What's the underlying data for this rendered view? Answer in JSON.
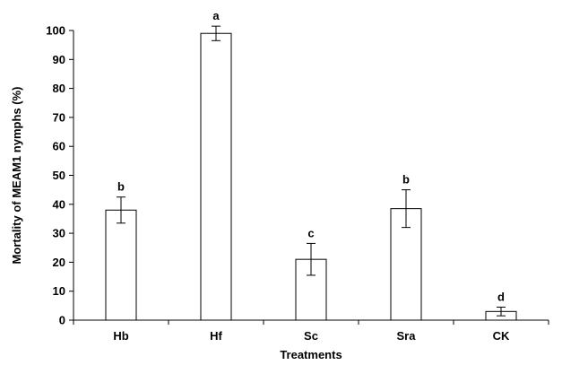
{
  "chart_data": {
    "type": "bar",
    "title": "",
    "xlabel": "Treatments",
    "ylabel": "Mortality of MEAM1 nymphs (%)",
    "ylim": [
      0,
      100
    ],
    "yticks": [
      0,
      10,
      20,
      30,
      40,
      50,
      60,
      70,
      80,
      90,
      100
    ],
    "categories": [
      "Hb",
      "Hf",
      "Sc",
      "Sra",
      "CK"
    ],
    "values": [
      38,
      99,
      21,
      38.5,
      3
    ],
    "errors": [
      4.5,
      2.5,
      5.5,
      6.5,
      1.5
    ],
    "significance_labels": [
      "b",
      "a",
      "c",
      "b",
      "d"
    ],
    "grid": false,
    "legend": "none",
    "colors": {
      "bar_fill": "#ffffff",
      "bar_stroke": "#000000",
      "axis": "#000000"
    }
  }
}
